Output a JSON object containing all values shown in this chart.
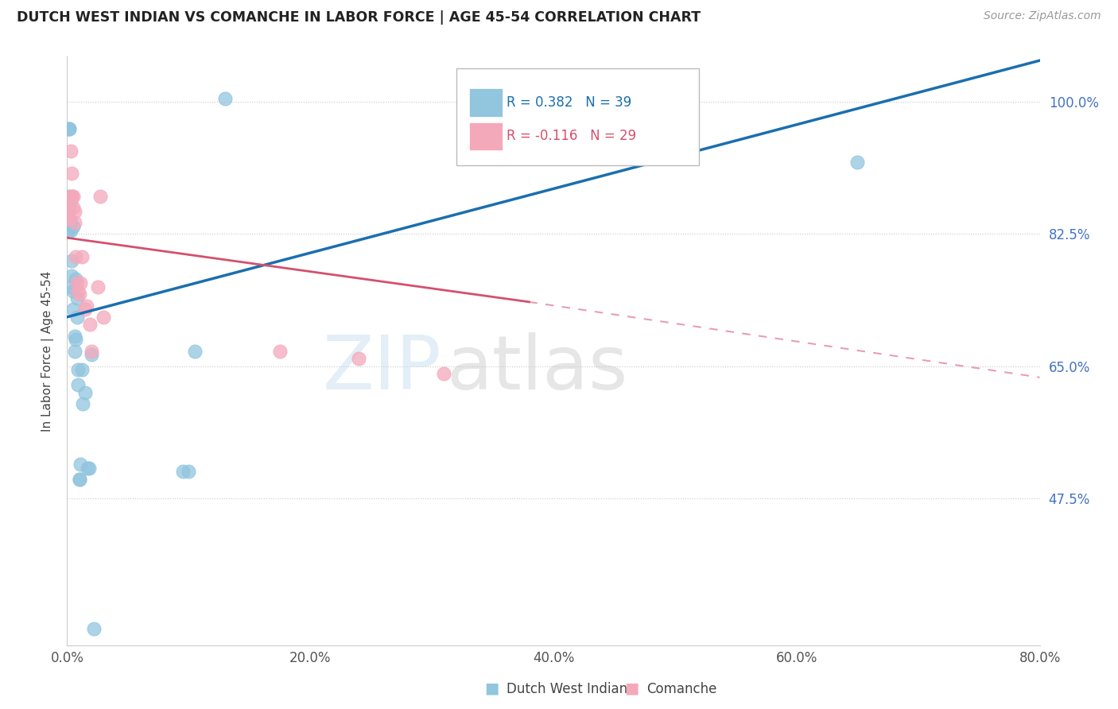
{
  "title": "DUTCH WEST INDIAN VS COMANCHE IN LABOR FORCE | AGE 45-54 CORRELATION CHART",
  "source": "Source: ZipAtlas.com",
  "ylabel": "In Labor Force | Age 45-54",
  "xmin": 0.0,
  "xmax": 0.8,
  "ymin": 0.28,
  "ymax": 1.06,
  "yticks": [
    0.475,
    0.65,
    0.825,
    1.0
  ],
  "ytick_labels": [
    "47.5%",
    "65.0%",
    "82.5%",
    "100.0%"
  ],
  "xticks": [
    0.0,
    0.2,
    0.4,
    0.6,
    0.8
  ],
  "xtick_labels": [
    "0.0%",
    "20.0%",
    "40.0%",
    "60.0%",
    "80.0%"
  ],
  "legend_label1": "Dutch West Indians",
  "legend_label2": "Comanche",
  "legend_r1_left": "R = 0.382",
  "legend_r1_right": "N = 39",
  "legend_r2_left": "R = -0.116",
  "legend_r2_right": "N = 29",
  "blue_scatter_color": "#92c5de",
  "pink_scatter_color": "#f4a9bb",
  "blue_line_color": "#1a6faf",
  "pink_line_color": "#d4506e",
  "blue_line_x0": 0.0,
  "blue_line_y0": 0.715,
  "blue_line_x1": 0.8,
  "blue_line_y1": 1.055,
  "pink_line_x0": 0.0,
  "pink_line_y0": 0.82,
  "pink_line_x1_solid": 0.38,
  "pink_line_y1_solid": 0.735,
  "pink_line_x1_dash": 0.8,
  "pink_line_y1_dash": 0.635,
  "blue_x": [
    0.001,
    0.001,
    0.001,
    0.001,
    0.001,
    0.002,
    0.002,
    0.003,
    0.003,
    0.003,
    0.004,
    0.004,
    0.004,
    0.005,
    0.005,
    0.005,
    0.006,
    0.006,
    0.007,
    0.007,
    0.008,
    0.008,
    0.009,
    0.009,
    0.01,
    0.01,
    0.011,
    0.012,
    0.013,
    0.015,
    0.017,
    0.018,
    0.02,
    0.022,
    0.095,
    0.1,
    0.105,
    0.13,
    0.65
  ],
  "blue_y": [
    0.83,
    0.845,
    0.86,
    0.875,
    0.965,
    0.965,
    0.965,
    0.87,
    0.84,
    0.83,
    0.79,
    0.77,
    0.755,
    0.75,
    0.835,
    0.725,
    0.69,
    0.67,
    0.765,
    0.685,
    0.715,
    0.74,
    0.625,
    0.645,
    0.5,
    0.5,
    0.52,
    0.645,
    0.6,
    0.615,
    0.515,
    0.515,
    0.665,
    0.302,
    0.51,
    0.51,
    0.67,
    1.005,
    0.92
  ],
  "pink_x": [
    0.001,
    0.001,
    0.001,
    0.002,
    0.002,
    0.003,
    0.004,
    0.004,
    0.004,
    0.005,
    0.005,
    0.006,
    0.006,
    0.007,
    0.008,
    0.009,
    0.01,
    0.011,
    0.012,
    0.015,
    0.016,
    0.019,
    0.02,
    0.025,
    0.027,
    0.03,
    0.175,
    0.24,
    0.31
  ],
  "pink_y": [
    0.845,
    0.855,
    0.87,
    0.845,
    0.86,
    0.935,
    0.905,
    0.875,
    0.875,
    0.875,
    0.86,
    0.84,
    0.855,
    0.795,
    0.76,
    0.75,
    0.745,
    0.76,
    0.795,
    0.725,
    0.73,
    0.705,
    0.67,
    0.755,
    0.875,
    0.715,
    0.67,
    0.66,
    0.64
  ],
  "watermark_line1": "ZIP",
  "watermark_line2": "atlas",
  "background_color": "#ffffff",
  "grid_color": "#c8c8c8",
  "ytick_color": "#4472C4",
  "xtick_color": "#555555",
  "title_color": "#222222",
  "source_color": "#999999",
  "ylabel_color": "#444444"
}
